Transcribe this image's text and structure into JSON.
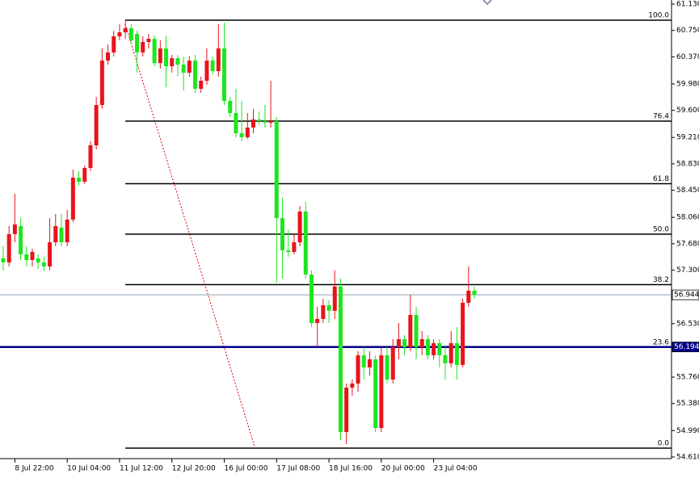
{
  "chart_data": {
    "type": "candlestick",
    "categories": [
      null,
      null,
      "8 Jul 22:00",
      null,
      null,
      null,
      null,
      null,
      null,
      null,
      null,
      "10 Jul 04:00",
      null,
      null,
      null,
      null,
      null,
      null,
      null,
      null,
      "11 Jul 12:00",
      null,
      null,
      null,
      null,
      null,
      null,
      null,
      null,
      "12 Jul 20:00",
      null,
      null,
      null,
      null,
      null,
      null,
      null,
      null,
      "16 Jul 00:00",
      null,
      null,
      null,
      null,
      null,
      null,
      null,
      null,
      "17 Jul 08:00",
      null,
      null,
      null,
      null,
      null,
      null,
      null,
      null,
      "18 Jul 16:00",
      null,
      null,
      null,
      null,
      null,
      null,
      null,
      null,
      "20 Jul 00:00",
      null,
      null,
      null,
      null,
      null,
      null,
      null,
      null,
      "23 Jul 04:00",
      null,
      null,
      null,
      null,
      null,
      null,
      null
    ],
    "open": [
      57.469,
      57.411,
      57.818,
      57.934,
      57.527,
      57.446,
      57.469,
      57.411,
      57.353,
      57.701,
      57.911,
      57.701,
      58.027,
      58.631,
      58.573,
      58.771,
      59.096,
      59.677,
      60.316,
      60.433,
      60.665,
      60.723,
      60.781,
      60.7,
      60.433,
      60.584,
      60.63,
      60.281,
      60.491,
      60.235,
      60.351,
      60.258,
      60.142,
      60.316,
      59.91,
      60.026,
      60.316,
      60.165,
      60.491,
      59.735,
      59.561,
      59.27,
      59.212,
      59.352,
      59.468,
      59.445,
      59.422,
      59.445,
      58.049,
      57.585,
      57.562,
      57.701,
      58.143,
      57.237,
      56.539,
      56.597,
      56.795,
      56.714,
      57.063,
      54.97,
      55.609,
      55.668,
      56.074,
      55.9,
      56.016,
      55.028,
      56.074,
      55.726,
      56.191,
      56.307,
      56.191,
      56.655,
      56.191,
      56.307,
      56.074,
      56.249,
      56.074,
      55.958,
      56.249,
      55.935,
      56.83,
      57.004
    ],
    "high": [
      57.643,
      57.934,
      58.399,
      58.049,
      57.643,
      57.608,
      57.527,
      57.492,
      58.049,
      58.108,
      58.108,
      58.166,
      58.747,
      58.724,
      58.805,
      59.154,
      59.793,
      60.491,
      60.549,
      60.746,
      60.839,
      60.897,
      60.839,
      60.746,
      60.665,
      60.7,
      60.677,
      60.607,
      60.665,
      60.398,
      60.398,
      60.375,
      60.375,
      60.398,
      60.084,
      60.491,
      60.375,
      60.839,
      60.863,
      59.793,
      59.91,
      59.735,
      59.561,
      59.619,
      59.584,
      59.677,
      60.026,
      59.503,
      58.341,
      57.876,
      57.818,
      58.224,
      58.283,
      57.295,
      56.772,
      56.888,
      56.865,
      57.295,
      57.178,
      55.668,
      55.726,
      56.132,
      56.191,
      56.132,
      56.074,
      56.191,
      56.191,
      56.307,
      56.539,
      56.365,
      56.946,
      56.772,
      56.423,
      56.365,
      56.307,
      56.307,
      56.191,
      56.423,
      56.481,
      56.888,
      57.353,
      57.063
    ],
    "low": [
      57.295,
      57.353,
      57.701,
      57.446,
      57.353,
      57.353,
      57.318,
      57.283,
      57.295,
      57.643,
      57.643,
      57.643,
      57.992,
      58.515,
      58.538,
      58.724,
      59.038,
      59.619,
      60.258,
      60.375,
      60.607,
      60.63,
      60.549,
      60.142,
      60.375,
      60.491,
      60.235,
      60.2,
      59.933,
      60.142,
      60.084,
      59.886,
      60.084,
      59.851,
      59.851,
      59.968,
      60.119,
      60.084,
      59.677,
      59.503,
      59.212,
      59.154,
      59.189,
      59.27,
      59.387,
      59.352,
      59.352,
      57.12,
      57.178,
      57.492,
      57.527,
      57.643,
      57.178,
      56.481,
      56.191,
      56.539,
      56.539,
      56.597,
      54.854,
      54.796,
      55.493,
      55.551,
      55.726,
      55.784,
      54.97,
      54.97,
      55.668,
      55.668,
      56.016,
      56.074,
      56.132,
      56.016,
      56.074,
      56.016,
      56.016,
      55.9,
      55.726,
      55.9,
      55.726,
      55.9,
      56.772,
      56.888
    ],
    "close": [
      57.411,
      57.818,
      57.957,
      57.527,
      57.446,
      57.562,
      57.411,
      57.353,
      57.701,
      57.934,
      57.701,
      58.027,
      58.631,
      58.573,
      58.771,
      59.096,
      59.677,
      60.316,
      60.433,
      60.665,
      60.723,
      60.781,
      60.607,
      60.433,
      60.584,
      60.63,
      60.281,
      60.491,
      60.235,
      60.351,
      60.258,
      60.142,
      60.316,
      59.91,
      60.026,
      60.316,
      60.165,
      60.491,
      59.735,
      59.561,
      59.27,
      59.212,
      59.352,
      59.468,
      59.445,
      59.422,
      59.445,
      58.049,
      57.585,
      57.562,
      57.701,
      58.143,
      57.237,
      56.539,
      56.597,
      56.795,
      56.714,
      57.063,
      54.97,
      55.609,
      55.668,
      56.074,
      55.9,
      56.016,
      55.028,
      56.074,
      55.726,
      56.191,
      56.307,
      56.191,
      56.655,
      56.191,
      56.307,
      56.074,
      56.249,
      56.074,
      55.958,
      56.249,
      55.935,
      56.83,
      57.004,
      56.944
    ],
    "up_color": "#e8141c",
    "down_color": "#1ee61e",
    "ylim": [
      54.61,
      61.13
    ],
    "yticks": [
      {
        "value": 61.13,
        "label": "61.130"
      },
      {
        "value": 60.75,
        "label": "60.750"
      },
      {
        "value": 60.37,
        "label": "60.370"
      },
      {
        "value": 59.98,
        "label": "59.980"
      },
      {
        "value": 59.6,
        "label": "59.600"
      },
      {
        "value": 59.21,
        "label": "59.210"
      },
      {
        "value": 58.83,
        "label": "58.830"
      },
      {
        "value": 58.45,
        "label": "58.450"
      },
      {
        "value": 58.06,
        "label": "58.060"
      },
      {
        "value": 57.68,
        "label": "57.680"
      },
      {
        "value": 57.3,
        "label": "57.300"
      },
      {
        "value": 56.53,
        "label": "56.530"
      },
      {
        "value": 55.76,
        "label": "55.760"
      },
      {
        "value": 55.38,
        "label": "55.380"
      },
      {
        "value": 54.99,
        "label": "54.990"
      },
      {
        "value": 54.61,
        "label": "54.610"
      }
    ],
    "fib_levels": [
      {
        "value": 60.897,
        "label": "100.0"
      },
      {
        "value": 59.445,
        "label": "76.4"
      },
      {
        "value": 58.544,
        "label": "61.8"
      },
      {
        "value": 57.818,
        "label": "50.0"
      },
      {
        "value": 57.091,
        "label": "38.2"
      },
      {
        "value": 56.192,
        "label": "23.6"
      },
      {
        "value": 54.738,
        "label": "0.0"
      }
    ],
    "price_lines": [
      {
        "value": 56.944,
        "color": "#90a0b4",
        "label_fill": "#ffffff",
        "label_color": "#000000"
      },
      {
        "value": 56.194,
        "color": "#00008b",
        "label_fill": "#00008b",
        "label_color": "#ffffff"
      }
    ],
    "grid": false
  }
}
